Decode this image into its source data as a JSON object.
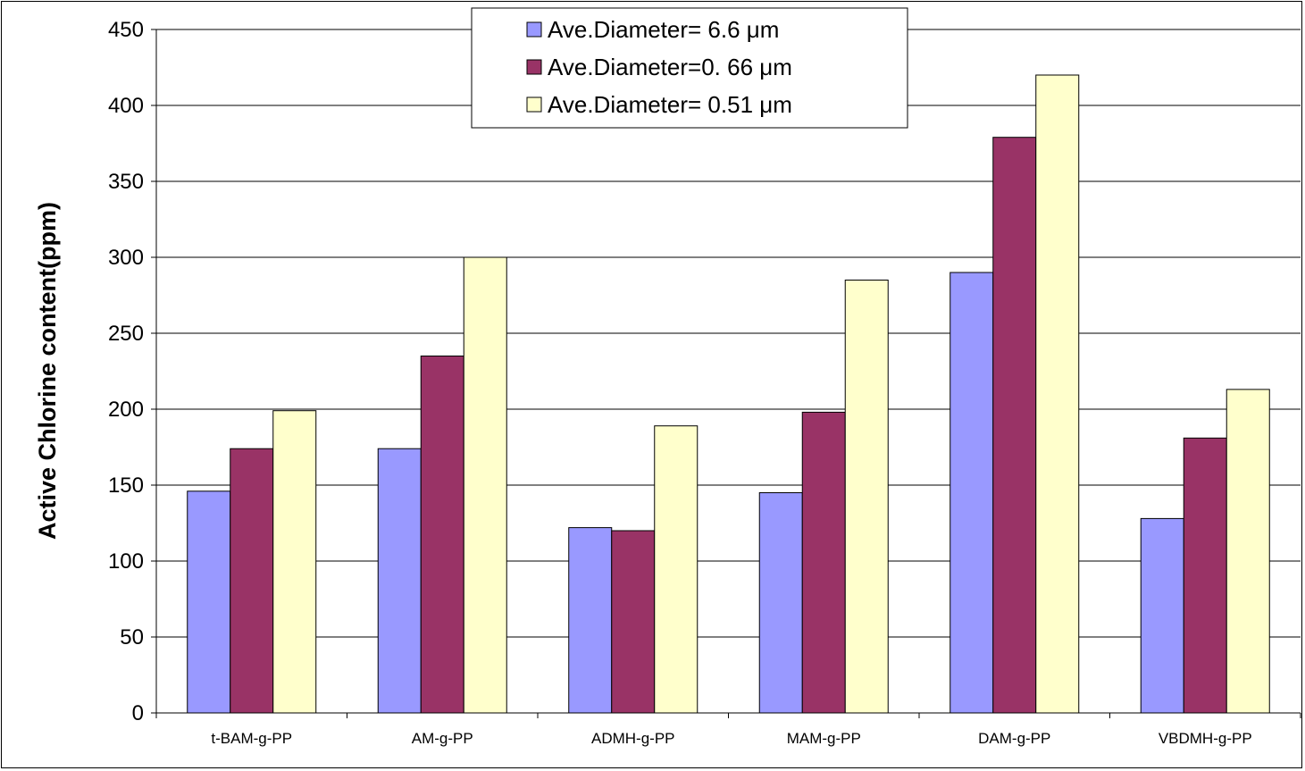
{
  "chart_data": {
    "type": "bar",
    "title": "",
    "xlabel": "",
    "ylabel": "Active Chlorine content(ppm)",
    "ylim": [
      0,
      450
    ],
    "yticks": [
      0,
      50,
      100,
      150,
      200,
      250,
      300,
      350,
      400,
      450
    ],
    "grid": true,
    "legend_position": "top-center",
    "categories": [
      "t-BAM-g-PP",
      "AM-g-PP",
      "ADMH-g-PP",
      "MAM-g-PP",
      "DAM-g-PP",
      "VBDMH-g-PP"
    ],
    "series": [
      {
        "name": "Ave.Diameter= 6.6 μm",
        "color": "#9999ff",
        "values": [
          146,
          174,
          122,
          145,
          290,
          128
        ]
      },
      {
        "name": "Ave.Diameter=0. 66 μm",
        "color": "#993366",
        "values": [
          174,
          235,
          120,
          198,
          379,
          181
        ]
      },
      {
        "name": "Ave.Diameter= 0.51 μm",
        "color": "#ffffcc",
        "values": [
          199,
          300,
          189,
          285,
          420,
          213
        ]
      }
    ]
  }
}
